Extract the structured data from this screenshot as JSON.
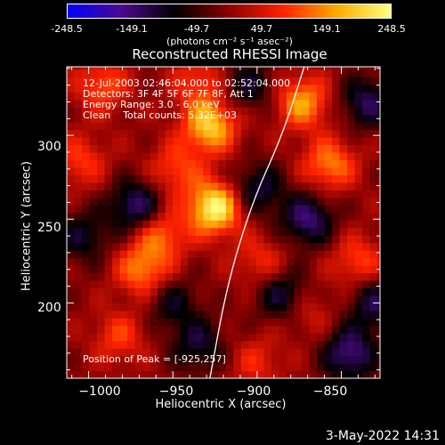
{
  "colorbar": {
    "ticks": [
      "-248.5",
      "-149.1",
      "-49.7",
      "49.7",
      "149.1",
      "248.5"
    ],
    "tick_values": [
      -248.5,
      -149.1,
      -49.7,
      49.7,
      149.1,
      248.5
    ],
    "range": [
      -248.5,
      248.5
    ],
    "units": "(photons cm⁻² s⁻¹ asec⁻²)",
    "colormap": [
      "#0000ff",
      "#4b0a8c",
      "#000000",
      "#8b0000",
      "#ff2200",
      "#ffaa00",
      "#ffff80"
    ]
  },
  "title": "Reconstructed RHESSI Image",
  "info": {
    "line1": "12-Jul-2003 02:46:04.000 to 02:52:04.000",
    "line2": "Detectors: 3F 4F 5F 6F 7F 8F, Att 1",
    "line3": "Energy Range: 3.0 - 6.0 keV",
    "line4": "Clean    Total counts: 5.32E+03"
  },
  "peak_text": "Position of Peak = [-925,257]",
  "footer": "3-May-2022 14:31",
  "chart_data": {
    "type": "heatmap",
    "title": "Reconstructed RHESSI Image",
    "xlabel": "Heliocentric X (arcsec)",
    "ylabel": "Heliocentric Y (arcsec)",
    "xlim": [
      -1013,
      -827
    ],
    "ylim": [
      155,
      341
    ],
    "xticks": [
      -1000,
      -950,
      -900,
      -850
    ],
    "xtick_labels": [
      "−1000",
      "−950",
      "−900",
      "−850"
    ],
    "yticks": [
      200,
      250,
      300
    ],
    "ytick_labels": [
      "200",
      "250",
      "300"
    ],
    "value_range": [
      -248.5,
      248.5
    ],
    "peak": {
      "x": -925,
      "y": 257
    },
    "sources": [
      {
        "x": -925,
        "y": 257,
        "value": 248
      },
      {
        "x": -928,
        "y": 306,
        "value": 200
      },
      {
        "x": -873,
        "y": 320,
        "value": 160
      },
      {
        "x": -957,
        "y": 241,
        "value": 120
      },
      {
        "x": -968,
        "y": 220,
        "value": 140
      },
      {
        "x": -948,
        "y": 280,
        "value": 100
      },
      {
        "x": -857,
        "y": 283,
        "value": 140
      },
      {
        "x": -1005,
        "y": 285,
        "value": 90
      },
      {
        "x": -840,
        "y": 225,
        "value": 100
      },
      {
        "x": -898,
        "y": 225,
        "value": 80
      },
      {
        "x": -982,
        "y": 180,
        "value": 90
      },
      {
        "x": -900,
        "y": 165,
        "value": 70
      },
      {
        "x": -870,
        "y": 195,
        "value": 60
      },
      {
        "x": -992,
        "y": 330,
        "value": 110
      },
      {
        "x": -935,
        "y": 332,
        "value": 90
      }
    ],
    "troughs": [
      {
        "x": -972,
        "y": 258,
        "value": -150
      },
      {
        "x": -900,
        "y": 268,
        "value": -120
      },
      {
        "x": -870,
        "y": 250,
        "value": -150
      },
      {
        "x": -835,
        "y": 320,
        "value": -130
      },
      {
        "x": -845,
        "y": 170,
        "value": -160
      },
      {
        "x": -935,
        "y": 175,
        "value": -110
      },
      {
        "x": -885,
        "y": 205,
        "value": -120
      },
      {
        "x": -1003,
        "y": 240,
        "value": -100
      },
      {
        "x": -950,
        "y": 200,
        "value": -90
      },
      {
        "x": -905,
        "y": 330,
        "value": -100
      },
      {
        "x": -830,
        "y": 200,
        "value": -120
      }
    ],
    "limb": [
      [
        -928,
        155
      ],
      [
        -918,
        210
      ],
      [
        -903,
        260
      ],
      [
        -885,
        300
      ],
      [
        -872,
        341
      ]
    ]
  }
}
